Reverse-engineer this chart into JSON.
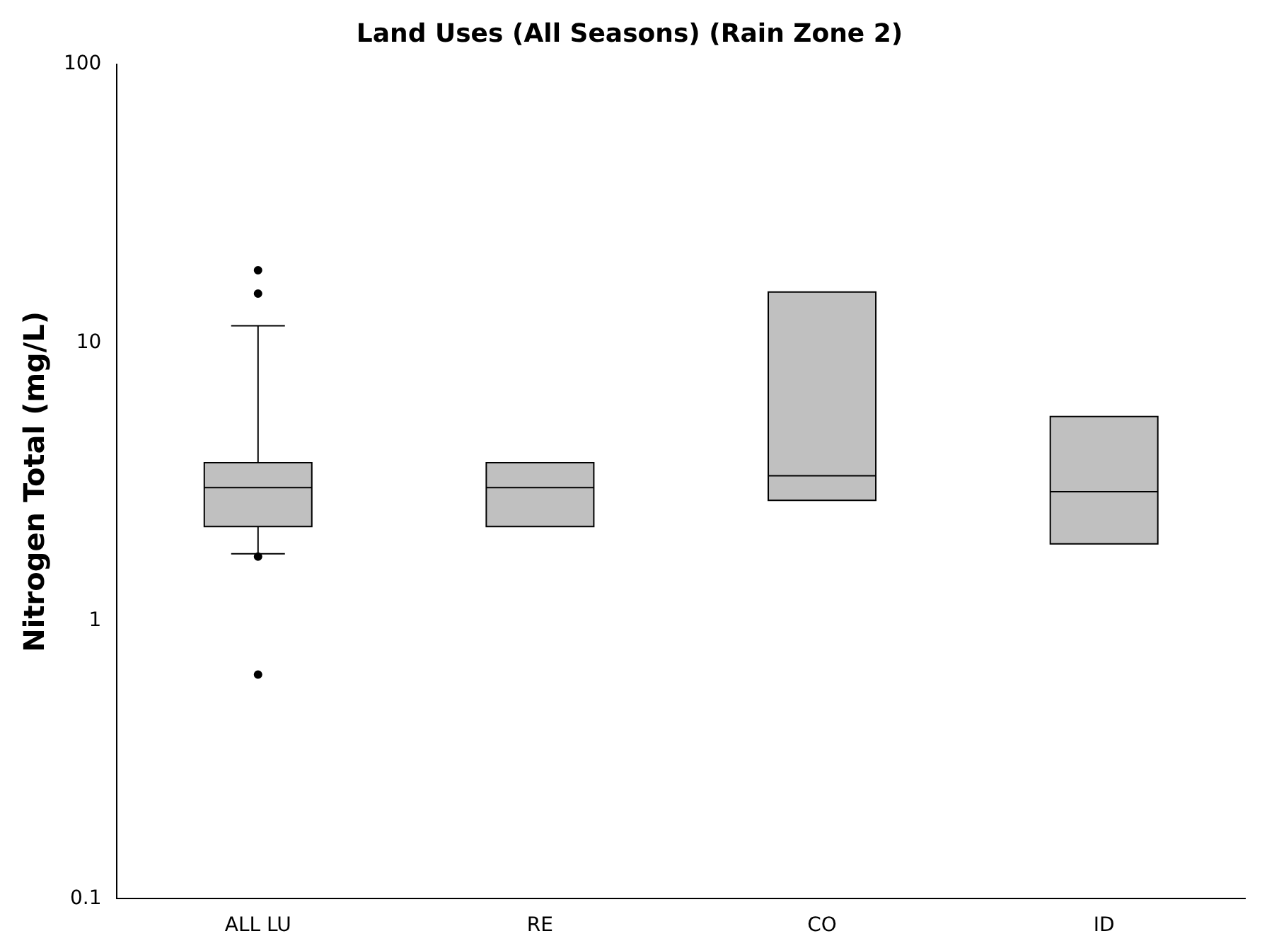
{
  "chart_data": {
    "type": "box",
    "title": "Land Uses (All Seasons) (Rain Zone 2)",
    "ylabel": "Nitrogen Total (mg/L)",
    "categories": [
      "ALL LU",
      "RE",
      "CO",
      "ID"
    ],
    "color": "#c0c0c0",
    "log": true,
    "ylim": [
      0.1,
      100
    ],
    "yticks": [
      0.1,
      1,
      10,
      100
    ],
    "grid": false,
    "legend": false,
    "boxes": [
      {
        "low": 1.74,
        "q1": 2.18,
        "median": 3.01,
        "q3": 3.7,
        "high": 11.5,
        "outliers": [
          18.2,
          15.0,
          1.7,
          0.64
        ]
      },
      {
        "low": 2.18,
        "q1": 2.18,
        "median": 3.01,
        "q3": 3.7,
        "high": 3.7
      },
      {
        "low": 2.71,
        "q1": 2.71,
        "median": 3.32,
        "q3": 15.2,
        "high": 15.2
      },
      {
        "low": 1.89,
        "q1": 1.89,
        "median": 2.91,
        "q3": 5.42,
        "high": 5.42
      }
    ]
  }
}
